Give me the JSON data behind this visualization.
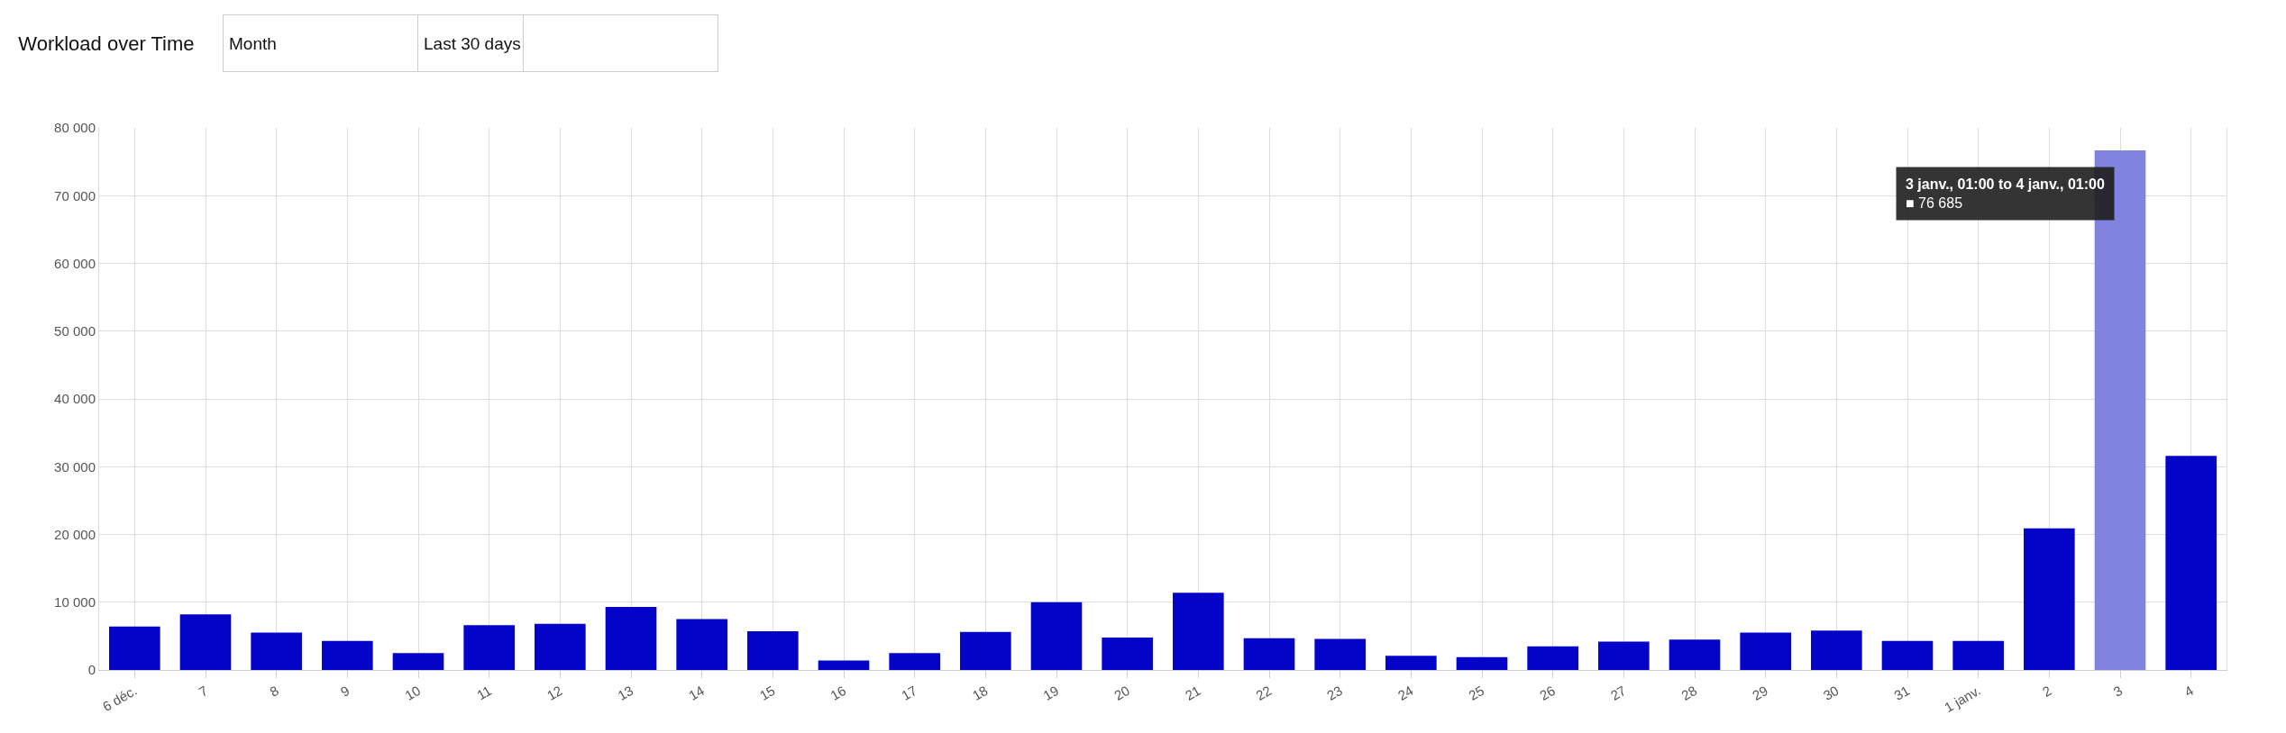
{
  "chart_data": {
    "type": "bar",
    "title": "Workload over Time",
    "annotations": [
      "Month",
      "Last 30 days",
      {
        "text": "3 janv., 01:00 to 4 janv., 01:00\n■ 76 685",
        "x": "3",
        "y": 76685
      }
    ],
    "categories": [
      "6 déc.",
      "7",
      "8",
      "9",
      "10",
      "11",
      "12",
      "13",
      "14",
      "15",
      "16",
      "17",
      "18",
      "19",
      "20",
      "21",
      "22",
      "23",
      "24",
      "25",
      "26",
      "27",
      "28",
      "29",
      "30",
      "31",
      "1 janv.",
      "2",
      "3",
      "4"
    ],
    "values": [
      6400,
      8200,
      5500,
      4300,
      2500,
      6600,
      6800,
      9300,
      7500,
      5700,
      1400,
      2500,
      5600,
      10000,
      4800,
      11400,
      4700,
      4600,
      2100,
      1900,
      3500,
      4200,
      4500,
      5500,
      5800,
      4300,
      4300,
      20900,
      76685,
      31600
    ],
    "colors": [
      "#0404c8",
      "#0404c8",
      "#0404c8",
      "#0404c8",
      "#0404c8",
      "#0404c8",
      "#0404c8",
      "#0404c8",
      "#0404c8",
      "#0404c8",
      "#0404c8",
      "#0404c8",
      "#0404c8",
      "#0404c8",
      "#0404c8",
      "#0404c8",
      "#0404c8",
      "#0404c8",
      "#0404c8",
      "#0404c8",
      "#0404c8",
      "#0404c8",
      "#0404c8",
      "#0404c8",
      "#0404c8",
      "#0404c8",
      "#0404c8",
      "#0404c8",
      "#8282e0",
      "#0404c8"
    ],
    "ylim": [
      0,
      80000
    ],
    "yticks": [
      0,
      {
        "value": 10000,
        "label": "10 000"
      },
      {
        "value": 20000,
        "label": "20 000"
      },
      {
        "value": 30000,
        "label": "30 000"
      },
      {
        "value": 40000,
        "label": "40 000"
      },
      {
        "value": 50000,
        "label": "50 000"
      },
      {
        "value": 60000,
        "label": "60 000"
      },
      {
        "value": 70000,
        "label": "70 000"
      },
      {
        "value": 80000,
        "label": "80 000"
      }
    ],
    "grid": true
  }
}
